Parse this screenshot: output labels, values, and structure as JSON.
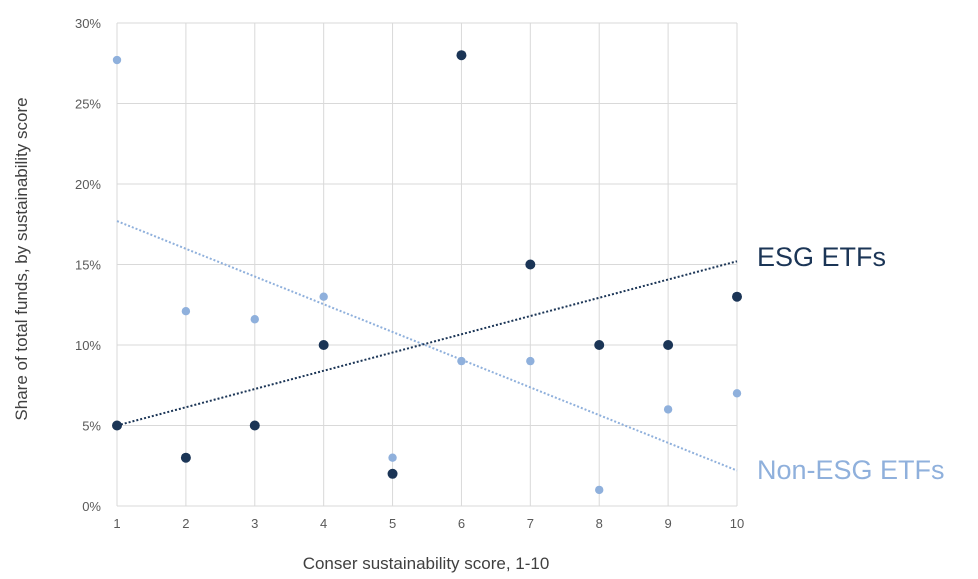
{
  "chart_data": {
    "type": "scatter",
    "xlabel": "Conser sustainability score, 1-10",
    "ylabel": "Share of total funds, by sustainability score",
    "xlim": [
      1,
      10
    ],
    "ylim": [
      0,
      30
    ],
    "x_ticks": [
      "1",
      "2",
      "3",
      "4",
      "5",
      "6",
      "7",
      "8",
      "9",
      "10"
    ],
    "y_ticks": [
      "0%",
      "5%",
      "10%",
      "15%",
      "20%",
      "25%",
      "30%"
    ],
    "grid": true,
    "series": [
      {
        "name": "ESG ETFs",
        "color": "#1b3556",
        "points": [
          {
            "x": 1,
            "y": 5
          },
          {
            "x": 2,
            "y": 3
          },
          {
            "x": 3,
            "y": 5
          },
          {
            "x": 4,
            "y": 10
          },
          {
            "x": 5,
            "y": 2
          },
          {
            "x": 6,
            "y": 28
          },
          {
            "x": 7,
            "y": 15
          },
          {
            "x": 8,
            "y": 10
          },
          {
            "x": 9,
            "y": 10
          },
          {
            "x": 10,
            "y": 13
          }
        ],
        "trendline": {
          "x": [
            1,
            10
          ],
          "y": [
            5,
            15.2
          ]
        }
      },
      {
        "name": "Non-ESG ETFs",
        "color": "#8fb0dc",
        "points": [
          {
            "x": 1,
            "y": 27.7
          },
          {
            "x": 2,
            "y": 12.1
          },
          {
            "x": 3,
            "y": 11.6
          },
          {
            "x": 4,
            "y": 13
          },
          {
            "x": 5,
            "y": 3
          },
          {
            "x": 6,
            "y": 9
          },
          {
            "x": 7,
            "y": 9
          },
          {
            "x": 8,
            "y": 1
          },
          {
            "x": 9,
            "y": 6
          },
          {
            "x": 10,
            "y": 7
          }
        ],
        "trendline": {
          "x": [
            1,
            10
          ],
          "y": [
            17.7,
            2.2
          ]
        }
      }
    ]
  }
}
